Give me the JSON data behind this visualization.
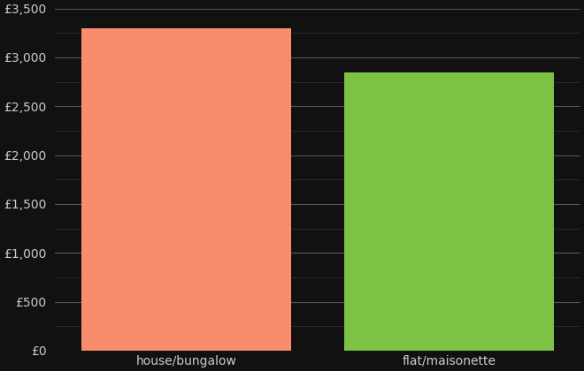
{
  "categories": [
    "house/bungalow",
    "flat/maisonette"
  ],
  "values": [
    3300,
    2850
  ],
  "bar_colors": [
    "#FA8C6E",
    "#7DC242"
  ],
  "background_color": "#111111",
  "text_color": "#cccccc",
  "ylim": [
    0,
    3500
  ],
  "yticks_major": [
    0,
    500,
    1000,
    1500,
    2000,
    2500,
    3000,
    3500
  ],
  "yticks_minor": [
    250,
    750,
    1250,
    1750,
    2250,
    2750,
    3250
  ],
  "grid_color": "#555555",
  "grid_minor_color": "#333333",
  "figsize": [
    6.6,
    4.2
  ],
  "dpi": 100
}
